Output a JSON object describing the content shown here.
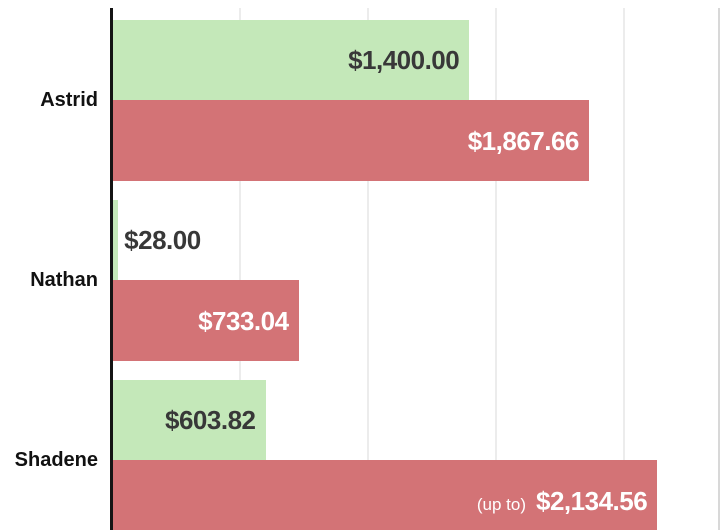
{
  "chart_data": {
    "type": "bar",
    "orientation": "horizontal",
    "title": "",
    "xlabel": "",
    "ylabel": "",
    "categories": [
      "Astrid",
      "Nathan",
      "Shadene"
    ],
    "series": [
      {
        "name": "green",
        "color": "#c4e8b9",
        "label_color": "#383838",
        "values": [
          1400.0,
          28.0,
          603.82
        ],
        "labels": [
          "$1,400.00",
          "$28.00",
          "$603.82"
        ]
      },
      {
        "name": "red",
        "color": "#d37376",
        "label_color": "#ffffff",
        "values": [
          1867.66,
          733.04,
          2134.56
        ],
        "labels": [
          "$1,867.66",
          "$733.04",
          "$2,134.56"
        ]
      }
    ],
    "annotations": {
      "up_to_note": "(up to)"
    },
    "axis": {
      "xmax": 2380,
      "grid_step": 500,
      "gridlines_at": [
        500,
        1000,
        1500,
        2000
      ],
      "x_tick_labels_visible": false,
      "y_axis_line_visible": true,
      "legend": "none"
    }
  },
  "colors": {
    "background": "#ffffff",
    "gridline": "#ececec",
    "axis_line": "#141414",
    "category_label": "#111111"
  }
}
